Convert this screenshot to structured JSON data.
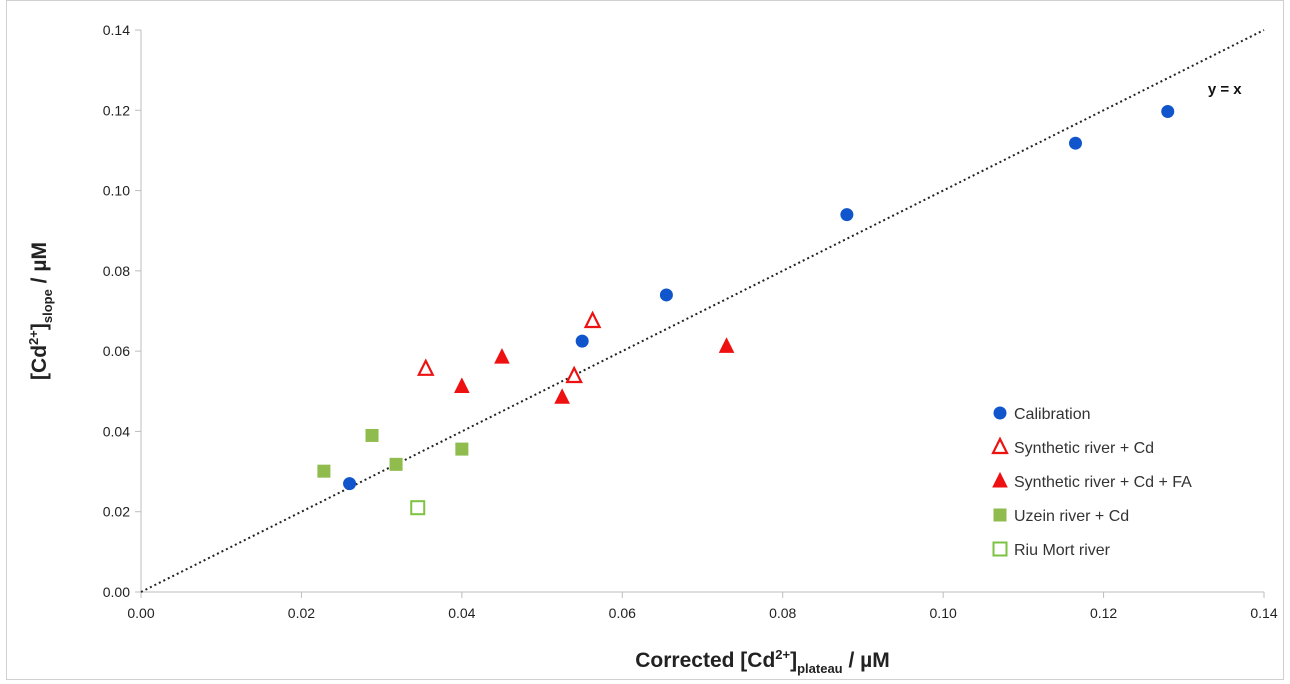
{
  "chart_data": {
    "type": "scatter",
    "title": "",
    "xlabel_parts": [
      "Corrected [Cd",
      "2+",
      "]",
      "plateau",
      " / µM"
    ],
    "ylabel_parts": [
      "[Cd",
      "2+",
      "]",
      "slope",
      " / µM"
    ],
    "xlim": [
      0,
      0.14
    ],
    "ylim": [
      0,
      0.14
    ],
    "x_ticks": [
      "0.00",
      "0.02",
      "0.04",
      "0.06",
      "0.08",
      "0.10",
      "0.12",
      "0.14"
    ],
    "y_ticks": [
      "0.00",
      "0.02",
      "0.04",
      "0.06",
      "0.08",
      "0.10",
      "0.12",
      "0.14"
    ],
    "grid": false,
    "legend_position": "lower-right",
    "reference_line": {
      "label": "y = x",
      "slope": 1,
      "intercept": 0,
      "style": "dotted"
    },
    "series": [
      {
        "name": "Calibration",
        "marker": "circle-filled",
        "color": "#1155cc",
        "points": [
          [
            0.026,
            0.027
          ],
          [
            0.055,
            0.0625
          ],
          [
            0.0655,
            0.074
          ],
          [
            0.088,
            0.094
          ],
          [
            0.1165,
            0.1118
          ],
          [
            0.128,
            0.1197
          ]
        ]
      },
      {
        "name": "Synthetic river + Cd",
        "marker": "triangle-open",
        "color": "#ee1111",
        "points": [
          [
            0.0355,
            0.0556
          ],
          [
            0.054,
            0.0538
          ],
          [
            0.0563,
            0.0675
          ]
        ]
      },
      {
        "name": "Synthetic river + Cd + FA",
        "marker": "triangle-filled",
        "color": "#ee1111",
        "points": [
          [
            0.04,
            0.0512
          ],
          [
            0.045,
            0.0585
          ],
          [
            0.0525,
            0.0485
          ],
          [
            0.073,
            0.0612
          ]
        ]
      },
      {
        "name": "Uzein river + Cd",
        "marker": "square-filled",
        "color": "#8fbc4d",
        "points": [
          [
            0.0228,
            0.0301
          ],
          [
            0.0288,
            0.039
          ],
          [
            0.0318,
            0.0318
          ],
          [
            0.04,
            0.0356
          ]
        ]
      },
      {
        "name": "Riu Mort river",
        "marker": "square-open",
        "color": "#7dc242",
        "points": [
          [
            0.0345,
            0.021
          ]
        ]
      }
    ]
  }
}
